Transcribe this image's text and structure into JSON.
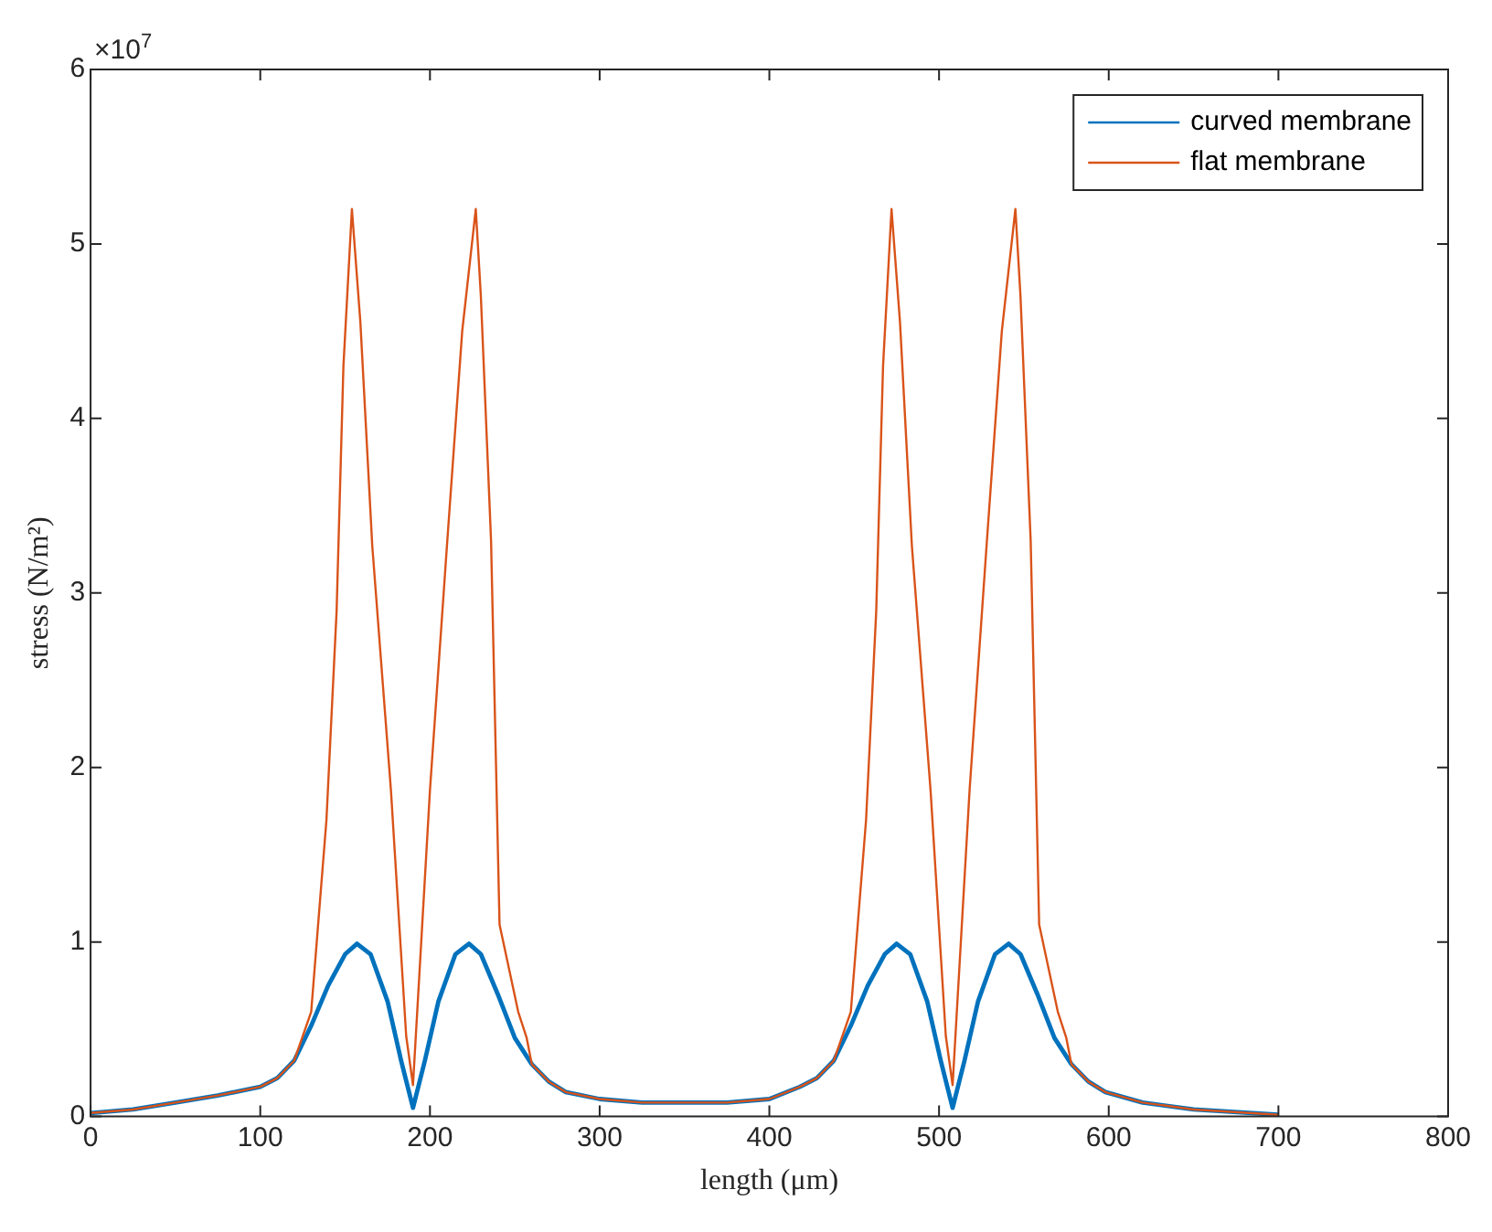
{
  "chart_data": {
    "type": "line",
    "xlabel": "length (μm)",
    "ylabel": "stress (N/m²)",
    "annotations": [
      "×10$^{7}$"
    ],
    "xlim": [
      0,
      800
    ],
    "xticks": [
      0,
      100,
      200,
      300,
      400,
      500,
      600,
      700,
      800
    ],
    "ylim": [
      0,
      6
    ],
    "yticks": [
      0,
      1,
      2,
      3,
      4,
      5,
      6
    ],
    "grid": false,
    "legend": "top right",
    "marker": "none",
    "line_style": "solid",
    "series": [
      {
        "name": "curved membrane",
        "color": "#0072bd",
        "x": [
          0,
          25,
          50,
          75,
          100,
          110,
          120,
          130,
          140,
          150,
          157,
          165,
          175,
          183,
          190,
          197,
          205,
          215,
          223,
          230,
          240,
          250,
          260,
          270,
          280,
          300,
          325,
          350,
          375,
          400,
          418,
          428,
          438,
          448,
          458,
          468,
          475,
          483,
          493,
          501,
          508,
          515,
          523,
          533,
          541,
          548,
          558,
          568,
          578,
          588,
          598,
          620,
          650,
          700
        ],
        "values": [
          0.02,
          0.04,
          0.08,
          0.12,
          0.17,
          0.22,
          0.32,
          0.52,
          0.75,
          0.93,
          0.99,
          0.93,
          0.66,
          0.32,
          0.05,
          0.32,
          0.66,
          0.93,
          0.99,
          0.93,
          0.7,
          0.45,
          0.3,
          0.2,
          0.14,
          0.1,
          0.08,
          0.08,
          0.08,
          0.1,
          0.17,
          0.22,
          0.32,
          0.52,
          0.75,
          0.93,
          0.99,
          0.93,
          0.66,
          0.32,
          0.05,
          0.32,
          0.66,
          0.93,
          0.99,
          0.93,
          0.7,
          0.45,
          0.3,
          0.2,
          0.14,
          0.08,
          0.04,
          0.01
        ]
      },
      {
        "name": "flat membrane",
        "color": "#d95319",
        "x": [
          0,
          25,
          50,
          75,
          100,
          110,
          120,
          130,
          139,
          145,
          149,
          154,
          159,
          166,
          177,
          186,
          190,
          200,
          210,
          219,
          227,
          230,
          236,
          241,
          252,
          257,
          260,
          270,
          280,
          300,
          325,
          350,
          375,
          400,
          418,
          428,
          438,
          448,
          457,
          463,
          467,
          472,
          477,
          484,
          495,
          504,
          508,
          518,
          528,
          537,
          545,
          548,
          554,
          559,
          570,
          575,
          578,
          588,
          598,
          620,
          650,
          700
        ],
        "values": [
          0.02,
          0.04,
          0.08,
          0.12,
          0.17,
          0.22,
          0.32,
          0.6,
          1.7,
          2.9,
          4.3,
          5.2,
          4.55,
          3.27,
          1.87,
          0.46,
          0.18,
          1.87,
          3.27,
          4.5,
          5.2,
          4.7,
          3.3,
          1.1,
          0.6,
          0.45,
          0.3,
          0.2,
          0.14,
          0.1,
          0.08,
          0.08,
          0.08,
          0.1,
          0.17,
          0.22,
          0.32,
          0.6,
          1.7,
          2.9,
          4.3,
          5.2,
          4.55,
          3.27,
          1.87,
          0.46,
          0.18,
          1.87,
          3.27,
          4.5,
          5.2,
          4.7,
          3.3,
          1.1,
          0.6,
          0.45,
          0.3,
          0.2,
          0.14,
          0.08,
          0.04,
          0.01
        ]
      }
    ]
  }
}
